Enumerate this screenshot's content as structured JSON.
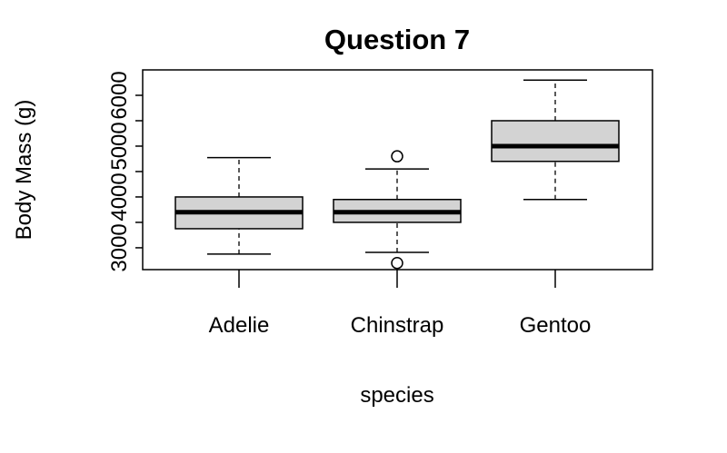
{
  "chart_data": {
    "type": "boxplot",
    "title": "Question 7",
    "x_label": "species",
    "y_label": "Body Mass (g)",
    "categories": [
      "Adelie",
      "Chinstrap",
      "Gentoo"
    ],
    "boxes": [
      {
        "min": 2875,
        "q1": 3375,
        "median": 3700,
        "q3": 4000,
        "max": 4775,
        "outliers": []
      },
      {
        "min": 2910,
        "q1": 3500,
        "median": 3700,
        "q3": 3950,
        "max": 4550,
        "outliers": [
          4800,
          2700
        ]
      },
      {
        "min": 3950,
        "q1": 4700,
        "median": 5000,
        "q3": 5500,
        "max": 6300,
        "outliers": []
      }
    ],
    "color": "#d3d3d3",
    "ylim": [
      2570,
      6500
    ],
    "yticks": [
      3000,
      {
        "value": 3500,
        "label": null
      },
      4000,
      {
        "value": 4500,
        "label": null
      },
      5000,
      {
        "value": 5500,
        "label": null
      },
      6000
    ]
  }
}
